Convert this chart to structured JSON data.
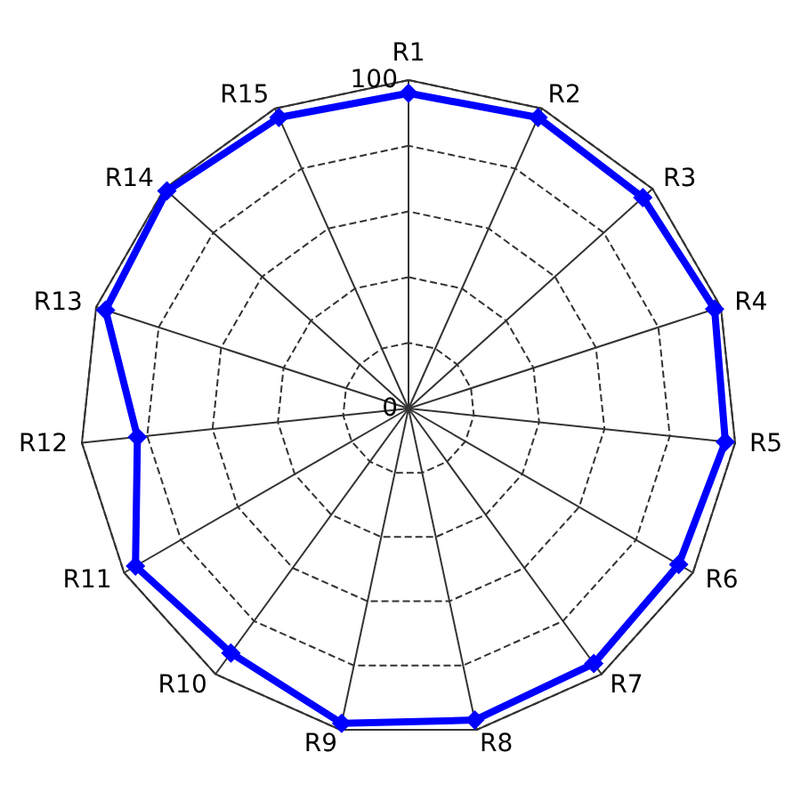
{
  "chart_data": {
    "type": "radar",
    "categories": [
      "R1",
      "R2",
      "R3",
      "R4",
      "R5",
      "R6",
      "R7",
      "R8",
      "R9",
      "R10",
      "R11",
      "R12",
      "R13",
      "R14",
      "R15"
    ],
    "series": [
      {
        "color": "#0000ff",
        "values": [
          96,
          97,
          96,
          98,
          97,
          95,
          96,
          97,
          98,
          92,
          96,
          83,
          97,
          99,
          97
        ]
      }
    ],
    "ylim": [
      0,
      100
    ],
    "yticks": [
      0,
      100
    ],
    "grid": true,
    "marker": "diamond",
    "line_style": "solid"
  }
}
